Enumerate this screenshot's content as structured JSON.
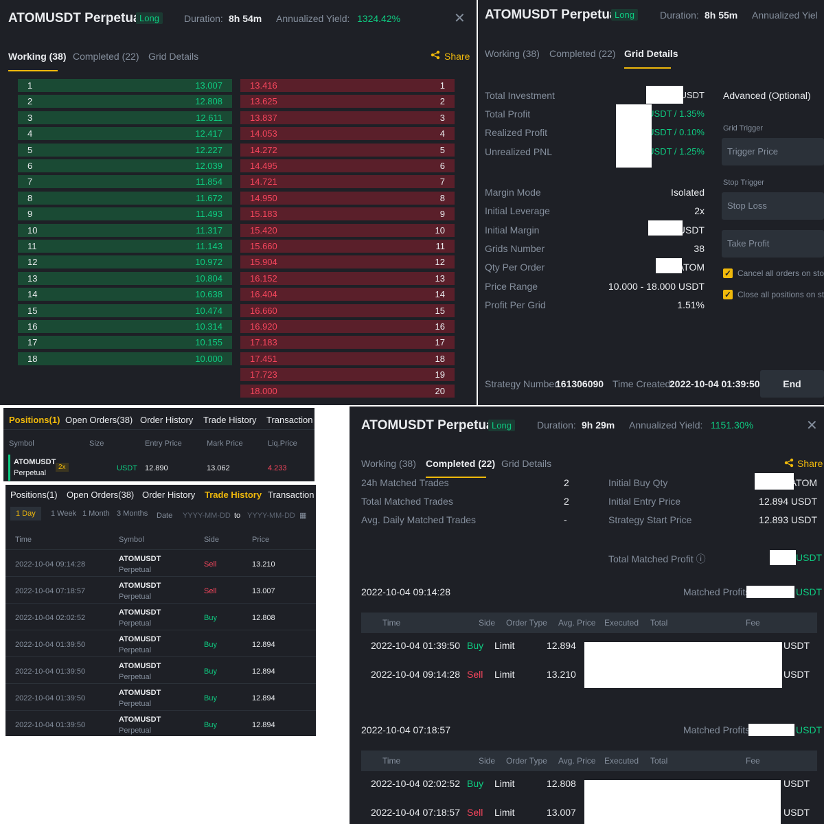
{
  "p1": {
    "title": "ATOMUSDT Perpetual",
    "badge": "Long",
    "duration_label": "Duration:",
    "duration": "8h 54m",
    "yield_label": "Annualized Yield:",
    "yield": "1324.42%",
    "tabs": [
      "Working (38)",
      "Completed (22)",
      "Grid Details"
    ],
    "share": "Share",
    "buy": [
      [
        "1",
        "13.007"
      ],
      [
        "2",
        "12.808"
      ],
      [
        "3",
        "12.611"
      ],
      [
        "4",
        "12.417"
      ],
      [
        "5",
        "12.227"
      ],
      [
        "6",
        "12.039"
      ],
      [
        "7",
        "11.854"
      ],
      [
        "8",
        "11.672"
      ],
      [
        "9",
        "11.493"
      ],
      [
        "10",
        "11.317"
      ],
      [
        "11",
        "11.143"
      ],
      [
        "12",
        "10.972"
      ],
      [
        "13",
        "10.804"
      ],
      [
        "14",
        "10.638"
      ],
      [
        "15",
        "10.474"
      ],
      [
        "16",
        "10.314"
      ],
      [
        "17",
        "10.155"
      ],
      [
        "18",
        "10.000"
      ]
    ],
    "sell": [
      [
        "13.416",
        "1"
      ],
      [
        "13.625",
        "2"
      ],
      [
        "13.837",
        "3"
      ],
      [
        "14.053",
        "4"
      ],
      [
        "14.272",
        "5"
      ],
      [
        "14.495",
        "6"
      ],
      [
        "14.721",
        "7"
      ],
      [
        "14.950",
        "8"
      ],
      [
        "15.183",
        "9"
      ],
      [
        "15.420",
        "10"
      ],
      [
        "15.660",
        "11"
      ],
      [
        "15.904",
        "12"
      ],
      [
        "16.152",
        "13"
      ],
      [
        "16.404",
        "14"
      ],
      [
        "16.660",
        "15"
      ],
      [
        "16.920",
        "16"
      ],
      [
        "17.183",
        "17"
      ],
      [
        "17.451",
        "18"
      ],
      [
        "17.723",
        "19"
      ],
      [
        "18.000",
        "20"
      ]
    ]
  },
  "p2": {
    "title": "ATOMUSDT Perpetual",
    "badge": "Long",
    "duration_label": "Duration:",
    "duration": "8h 55m",
    "yield_label": "Annualized Yiel",
    "tabs": [
      "Working (38)",
      "Completed (22)",
      "Grid Details"
    ],
    "rows_a": [
      {
        "label": "Total Investment",
        "value": "USDT"
      },
      {
        "label": "Total Profit",
        "value": "USDT / 1.35%"
      },
      {
        "label": "Realized Profit",
        "value": "USDT / 0.10%"
      },
      {
        "label": "Unrealized PNL",
        "value": "USDT / 1.25%"
      }
    ],
    "rows_b": [
      {
        "label": "Margin Mode",
        "value": "Isolated"
      },
      {
        "label": "Initial Leverage",
        "value": "2x"
      },
      {
        "label": "Initial Margin",
        "value": "USDT"
      },
      {
        "label": "Grids Number",
        "value": "38"
      },
      {
        "label": "Qty Per Order",
        "value": "ATOM"
      },
      {
        "label": "Price Range",
        "value": "10.000 - 18.000 USDT"
      },
      {
        "label": "Profit Per Grid",
        "value": "1.51%"
      }
    ],
    "advanced": "Advanced (Optional)",
    "grid_trigger": "Grid Trigger",
    "trigger_price": "Trigger Price",
    "stop_trigger": "Stop Trigger",
    "stop_loss": "Stop Loss",
    "take_profit": "Take Profit",
    "cancel_orders": "Cancel all orders on stop",
    "close_positions": "Close all positions on stop",
    "strategy_label": "Strategy Number:",
    "strategy_number": "161306090",
    "created_label": "Time Created:",
    "created": "2022-10-04 01:39:50",
    "end": "End"
  },
  "p3": {
    "tabs": [
      "Positions(1)",
      "Open Orders(38)",
      "Order History",
      "Trade History",
      "Transaction"
    ],
    "cols": [
      "Symbol",
      "Size",
      "Entry Price",
      "Mark Price",
      "Liq.Price"
    ],
    "symbol": "ATOMUSDT",
    "symbol_sub": "Perpetual",
    "lev": "2x",
    "size_unit": "USDT",
    "entry": "12.890",
    "mark": "13.062",
    "liq": "4.233"
  },
  "p4": {
    "tabs": [
      "Positions(1)",
      "Open Orders(38)",
      "Order History",
      "Trade History",
      "Transaction"
    ],
    "ranges": [
      "1 Day",
      "1 Week",
      "1 Month",
      "3 Months"
    ],
    "date_label": "Date",
    "date_from": "YYYY-MM-DD",
    "to": "to",
    "date_to": "YYYY-MM-DD",
    "cols": [
      "Time",
      "Symbol",
      "Side",
      "Price"
    ],
    "rows": [
      {
        "time": "2022-10-04 09:14:28",
        "sym": "ATOMUSDT",
        "sub": "Perpetual",
        "side": "Sell",
        "price": "13.210"
      },
      {
        "time": "2022-10-04 07:18:57",
        "sym": "ATOMUSDT",
        "sub": "Perpetual",
        "side": "Sell",
        "price": "13.007"
      },
      {
        "time": "2022-10-04 02:02:52",
        "sym": "ATOMUSDT",
        "sub": "Perpetual",
        "side": "Buy",
        "price": "12.808"
      },
      {
        "time": "2022-10-04 01:39:50",
        "sym": "ATOMUSDT",
        "sub": "Perpetual",
        "side": "Buy",
        "price": "12.894"
      },
      {
        "time": "2022-10-04 01:39:50",
        "sym": "ATOMUSDT",
        "sub": "Perpetual",
        "side": "Buy",
        "price": "12.894"
      },
      {
        "time": "2022-10-04 01:39:50",
        "sym": "ATOMUSDT",
        "sub": "Perpetual",
        "side": "Buy",
        "price": "12.894"
      },
      {
        "time": "2022-10-04 01:39:50",
        "sym": "ATOMUSDT",
        "sub": "Perpetual",
        "side": "Buy",
        "price": "12.894"
      }
    ]
  },
  "p5": {
    "title": "ATOMUSDT Perpetual",
    "badge": "Long",
    "duration_label": "Duration:",
    "duration": "9h 29m",
    "yield_label": "Annualized Yield:",
    "yield": "1151.30%",
    "tabs": [
      "Working (38)",
      "Completed (22)",
      "Grid Details"
    ],
    "share": "Share",
    "stats_left": [
      {
        "label": "24h Matched Trades",
        "value": "2"
      },
      {
        "label": "Total Matched Trades",
        "value": "2"
      },
      {
        "label": "Avg. Daily Matched Trades",
        "value": "-"
      }
    ],
    "stats_right": [
      {
        "label": "Initial Buy Qty",
        "value": "ATOM"
      },
      {
        "label": "Initial Entry Price",
        "value": "12.894 USDT"
      },
      {
        "label": "Strategy Start Price",
        "value": "12.893 USDT"
      }
    ],
    "total_profit_label": "Total Matched Profit ⓘ",
    "total_profit_unit": "USDT",
    "cols": [
      "Time",
      "Side",
      "Order Type",
      "Avg. Price",
      "Executed",
      "Total",
      "Fee"
    ],
    "groups": [
      {
        "time": "2022-10-04 09:14:28",
        "profit_label": "Matched Profits:",
        "unit": "USDT",
        "rows": [
          {
            "time": "2022-10-04 01:39:50",
            "side": "Buy",
            "type": "Limit",
            "price": "12.894",
            "fee": "USDT"
          },
          {
            "time": "2022-10-04 09:14:28",
            "side": "Sell",
            "type": "Limit",
            "price": "13.210",
            "fee": "USDT"
          }
        ]
      },
      {
        "time": "2022-10-04 07:18:57",
        "profit_label": "Matched Profits:",
        "unit": "USDT",
        "rows": [
          {
            "time": "2022-10-04 02:02:52",
            "side": "Buy",
            "type": "Limit",
            "price": "12.808",
            "fee": "USDT"
          },
          {
            "time": "2022-10-04 07:18:57",
            "side": "Sell",
            "type": "Limit",
            "price": "13.007",
            "fee": "USDT"
          }
        ]
      }
    ]
  },
  "colors": {
    "bg": "#1e2026",
    "green": "#0ecb81",
    "red": "#f6465d",
    "yellow": "#f0b90b",
    "gray": "#848e9c"
  }
}
